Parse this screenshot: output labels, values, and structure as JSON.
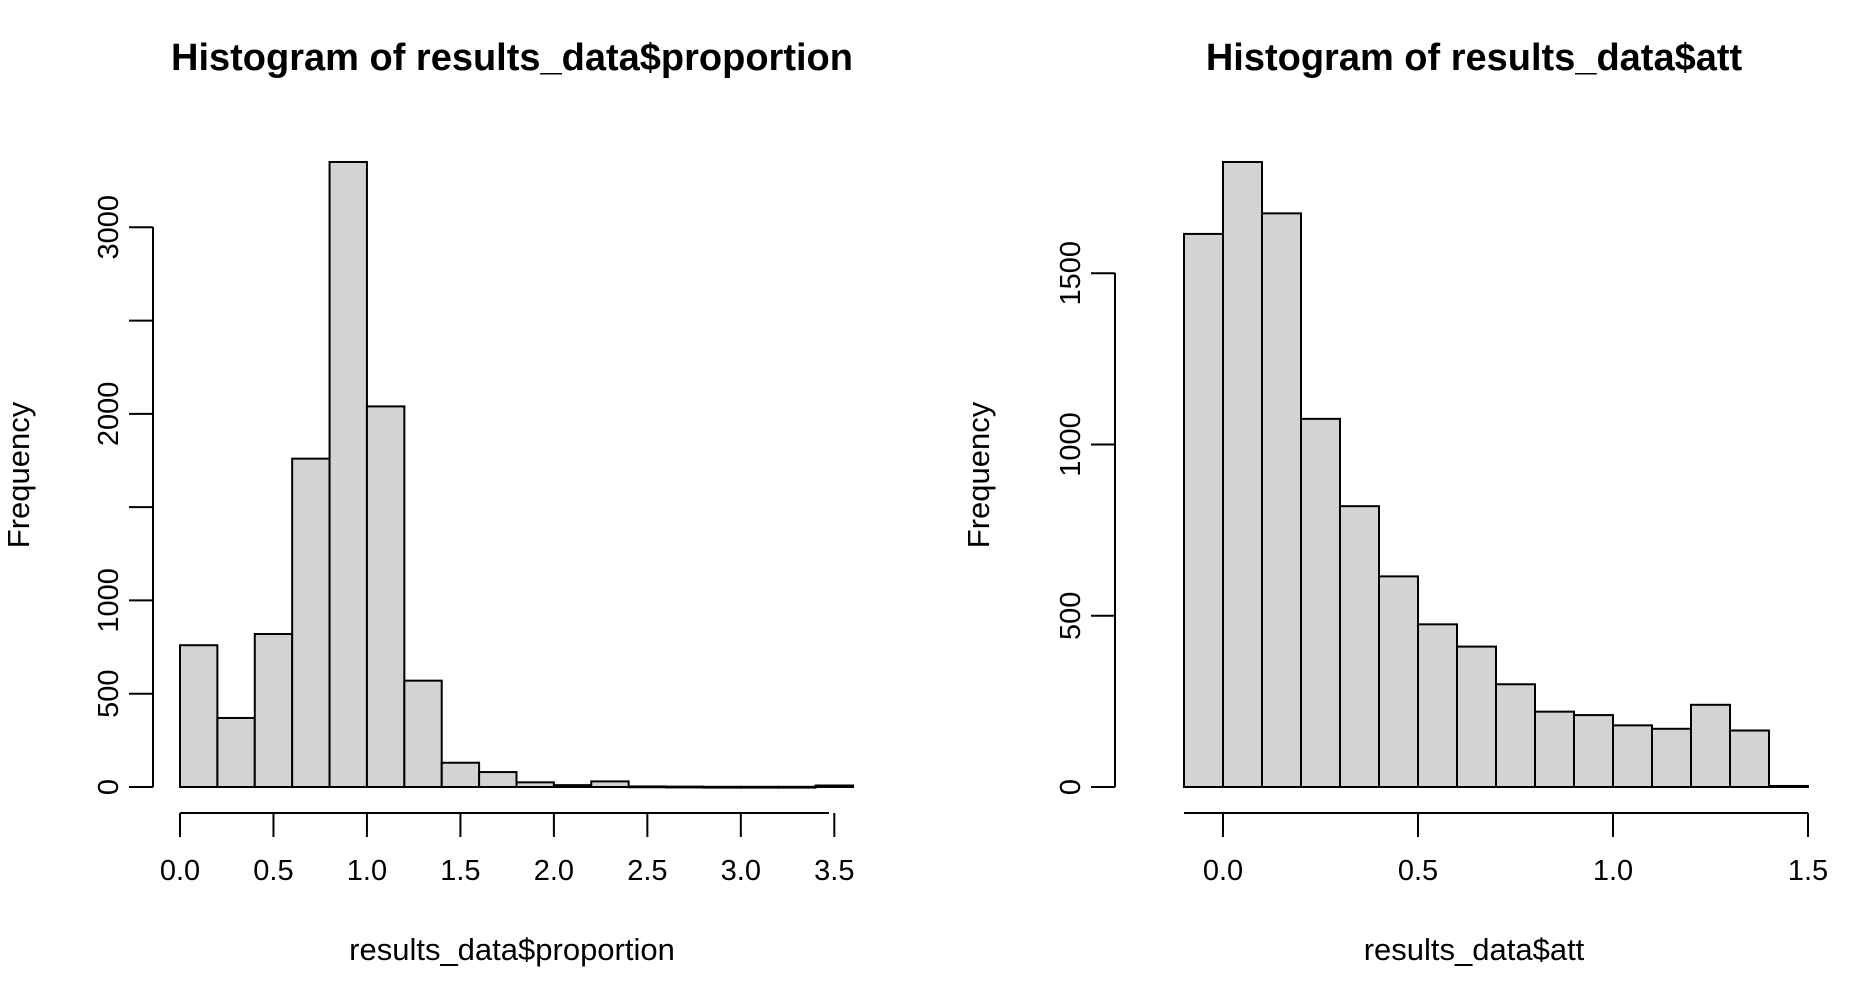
{
  "chart_data": [
    {
      "type": "bar",
      "title": "Histogram of results_data$proportion",
      "xlabel": "results_data$proportion",
      "ylabel": "Frequency",
      "bin_edges": [
        0.0,
        0.2,
        0.4,
        0.6,
        0.8,
        1.0,
        1.2,
        1.4,
        1.6,
        1.8,
        2.0,
        2.2,
        2.4,
        2.6,
        2.8,
        3.0,
        3.2,
        3.4,
        3.6
      ],
      "values": [
        760,
        370,
        820,
        1760,
        3350,
        2040,
        570,
        130,
        80,
        25,
        10,
        30,
        3,
        2,
        1,
        1,
        1,
        8
      ],
      "xlim": [
        0.0,
        3.6
      ],
      "ylim": [
        0,
        3350
      ],
      "x_ticks": [
        "0.0",
        "0.5",
        "1.0",
        "1.5",
        "2.0",
        "2.5",
        "3.0",
        "3.5"
      ],
      "y_ticks": [
        0,
        500,
        1000,
        1500,
        2000,
        2500,
        3000
      ],
      "y_tick_labels": [
        "0",
        "500",
        "1000",
        "",
        "2000",
        "",
        "3000"
      ],
      "bar_fill": "#d3d3d3",
      "bar_stroke": "#000000",
      "grid": false
    },
    {
      "type": "bar",
      "title": "Histogram of results_data$att",
      "xlabel": "results_data$att",
      "ylabel": "Frequency",
      "bin_edges": [
        -0.1,
        0.0,
        0.1,
        0.2,
        0.3,
        0.4,
        0.5,
        0.6,
        0.7,
        0.8,
        0.9,
        1.0,
        1.1,
        1.2,
        1.3,
        1.4,
        1.5
      ],
      "values": [
        1615,
        1825,
        1675,
        1075,
        820,
        615,
        475,
        410,
        300,
        220,
        210,
        180,
        170,
        240,
        165,
        3
      ],
      "xlim": [
        -0.1,
        1.5
      ],
      "ylim": [
        0,
        1825
      ],
      "x_ticks": [
        "0.0",
        "0.5",
        "1.0",
        "1.5"
      ],
      "y_ticks": [
        0,
        500,
        1000,
        1500
      ],
      "y_tick_labels": [
        "0",
        "500",
        "1000",
        "1500"
      ],
      "bar_fill": "#d3d3d3",
      "bar_stroke": "#000000",
      "grid": false
    }
  ]
}
